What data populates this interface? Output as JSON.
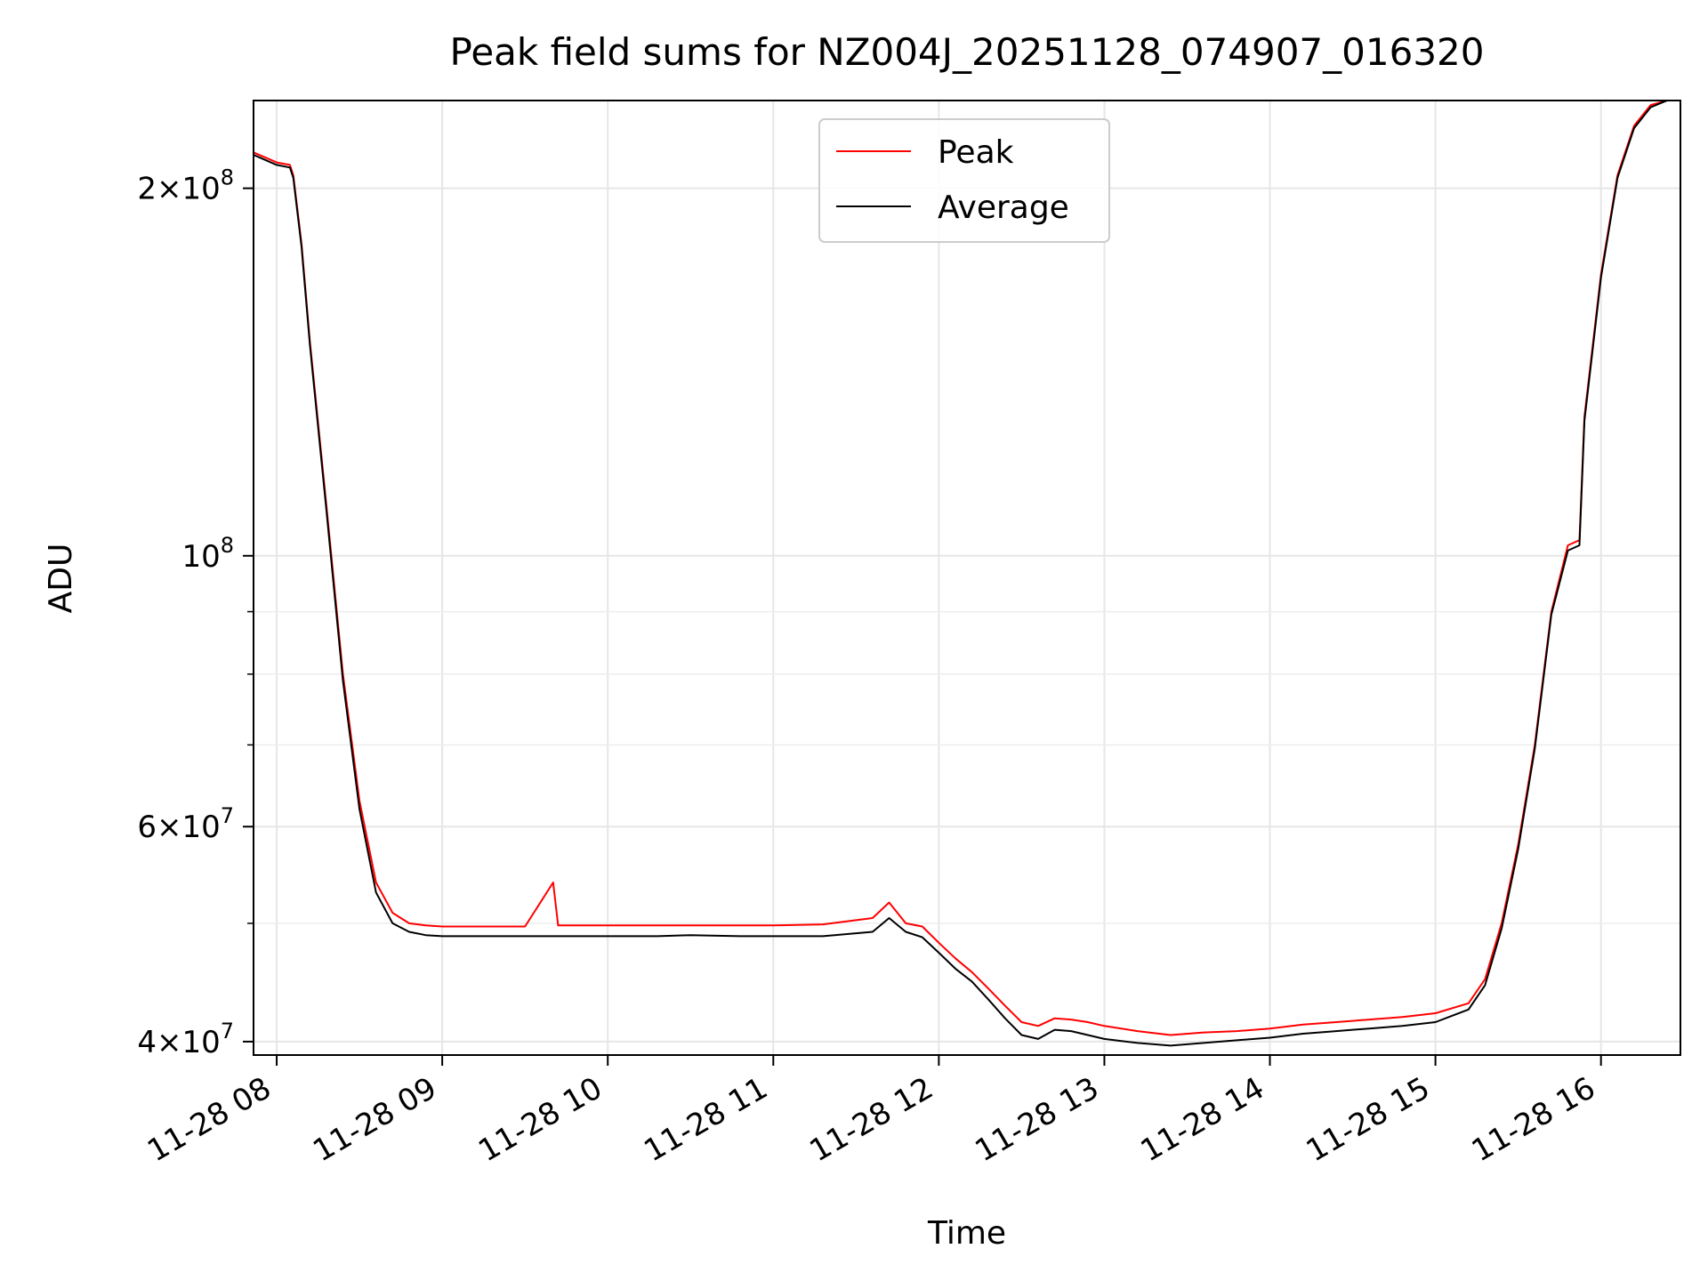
{
  "chart_data": {
    "type": "line",
    "title": "Peak field sums for NZ004J_20251128_074907_016320",
    "xlabel": "Time",
    "ylabel": "ADU",
    "yscale": "log",
    "grid": true,
    "legend_position": "upper center",
    "xlim": [
      7.86,
      16.48
    ],
    "ylim": [
      39000000,
      236000000
    ],
    "x_ticks": [
      {
        "value": 8,
        "label": "11-28 08"
      },
      {
        "value": 9,
        "label": "11-28 09"
      },
      {
        "value": 10,
        "label": "11-28 10"
      },
      {
        "value": 11,
        "label": "11-28 11"
      },
      {
        "value": 12,
        "label": "11-28 12"
      },
      {
        "value": 13,
        "label": "11-28 13"
      },
      {
        "value": 14,
        "label": "11-28 14"
      },
      {
        "value": 15,
        "label": "11-28 15"
      },
      {
        "value": 16,
        "label": "11-28 16"
      }
    ],
    "y_major_ticks": [
      {
        "value": 40000000,
        "mantissa": "4",
        "base": "10",
        "exponent": "7"
      },
      {
        "value": 60000000,
        "mantissa": "6",
        "base": "10",
        "exponent": "7"
      },
      {
        "value": 100000000,
        "mantissa": "",
        "base": "10",
        "exponent": "8"
      },
      {
        "value": 200000000,
        "mantissa": "2",
        "base": "10",
        "exponent": "8"
      }
    ],
    "y_minor_ticks": [
      50000000,
      70000000,
      80000000,
      90000000
    ],
    "x_unit_note": "hours of 2025-11-28",
    "series": [
      {
        "name": "Peak",
        "color": "#ff0000",
        "x": [
          7.86,
          8.0,
          8.08,
          8.1,
          8.15,
          8.2,
          8.3,
          8.4,
          8.5,
          8.6,
          8.7,
          8.8,
          8.9,
          9.0,
          9.5,
          9.67,
          9.7,
          10.0,
          10.3,
          10.5,
          10.8,
          11.0,
          11.3,
          11.6,
          11.7,
          11.8,
          11.9,
          12.0,
          12.1,
          12.2,
          12.3,
          12.4,
          12.5,
          12.6,
          12.7,
          12.8,
          12.9,
          13.0,
          13.2,
          13.4,
          13.6,
          13.8,
          14.0,
          14.2,
          14.4,
          14.6,
          14.8,
          15.0,
          15.2,
          15.3,
          15.4,
          15.5,
          15.6,
          15.7,
          15.8,
          15.87,
          15.9,
          16.0,
          16.1,
          16.2,
          16.3,
          16.4,
          16.48
        ],
        "values": [
          214000000,
          210000000,
          209000000,
          205000000,
          180000000,
          150000000,
          110000000,
          80000000,
          63000000,
          54000000,
          51000000,
          50000000,
          49800000,
          49700000,
          49700000,
          54000000,
          49800000,
          49800000,
          49800000,
          49800000,
          49800000,
          49800000,
          49900000,
          50500000,
          52000000,
          50000000,
          49700000,
          48200000,
          46800000,
          45600000,
          44200000,
          42800000,
          41500000,
          41200000,
          41800000,
          41700000,
          41500000,
          41200000,
          40800000,
          40500000,
          40700000,
          40800000,
          41000000,
          41300000,
          41500000,
          41700000,
          41900000,
          42200000,
          43000000,
          45000000,
          50000000,
          58000000,
          70000000,
          90000000,
          102000000,
          103000000,
          130000000,
          170000000,
          205000000,
          225000000,
          234000000,
          236000000,
          236000000
        ]
      },
      {
        "name": "Average",
        "color": "#000000",
        "x": [
          7.86,
          8.0,
          8.08,
          8.1,
          8.15,
          8.2,
          8.3,
          8.4,
          8.5,
          8.6,
          8.7,
          8.8,
          8.9,
          9.0,
          9.5,
          9.67,
          9.7,
          10.0,
          10.3,
          10.5,
          10.8,
          11.0,
          11.3,
          11.6,
          11.7,
          11.8,
          11.9,
          12.0,
          12.1,
          12.2,
          12.3,
          12.4,
          12.5,
          12.6,
          12.7,
          12.8,
          12.9,
          13.0,
          13.2,
          13.4,
          13.6,
          13.8,
          14.0,
          14.2,
          14.4,
          14.6,
          14.8,
          15.0,
          15.2,
          15.3,
          15.4,
          15.5,
          15.6,
          15.7,
          15.8,
          15.87,
          15.9,
          16.0,
          16.1,
          16.2,
          16.3,
          16.4,
          16.48
        ],
        "values": [
          213000000,
          209000000,
          208000000,
          204000000,
          179000000,
          149000000,
          109000000,
          79000000,
          62000000,
          53000000,
          50000000,
          49200000,
          48900000,
          48800000,
          48800000,
          48800000,
          48800000,
          48800000,
          48800000,
          48900000,
          48800000,
          48800000,
          48800000,
          49200000,
          50500000,
          49200000,
          48700000,
          47300000,
          45900000,
          44800000,
          43300000,
          41800000,
          40500000,
          40200000,
          40900000,
          40800000,
          40500000,
          40200000,
          39900000,
          39700000,
          39900000,
          40100000,
          40300000,
          40600000,
          40800000,
          41000000,
          41200000,
          41500000,
          42500000,
          44500000,
          49500000,
          57500000,
          69500000,
          89500000,
          101000000,
          102000000,
          129000000,
          169000000,
          204000000,
          224000000,
          233000000,
          236000000,
          236000000
        ]
      }
    ]
  }
}
